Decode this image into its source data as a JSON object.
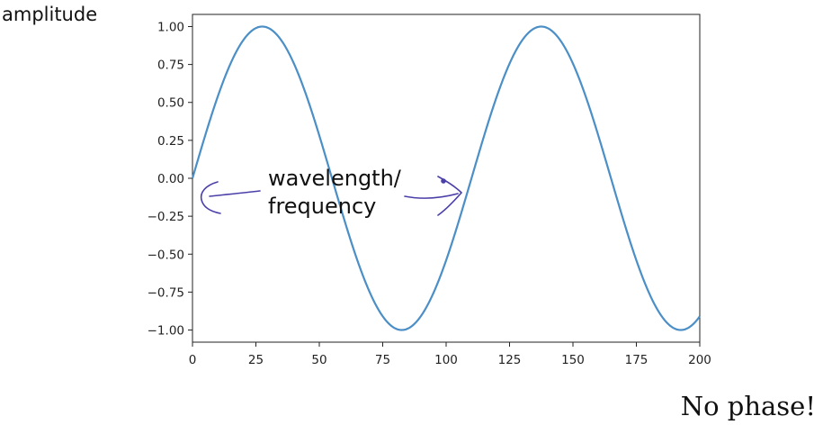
{
  "chart_data": {
    "type": "line",
    "title": "",
    "xlabel": "",
    "ylabel": "amplitude",
    "xlim": [
      0,
      200
    ],
    "ylim": [
      -1.08,
      1.08
    ],
    "xticks": [
      0,
      25,
      50,
      75,
      100,
      125,
      150,
      175,
      200
    ],
    "yticks": [
      1.0,
      0.75,
      0.5,
      0.25,
      0.0,
      -0.25,
      -0.5,
      -0.75,
      -1.0
    ],
    "ytick_labels": [
      "1.00",
      "0.75",
      "0.50",
      "0.25",
      "0.00",
      "−0.25",
      "−0.50",
      "−0.75",
      "−1.00"
    ],
    "grid": false,
    "series": [
      {
        "function": "sin",
        "amplitude": 1.0,
        "period": 110,
        "phase": 0,
        "x_range": [
          0,
          200
        ],
        "color": "#4b8fc6"
      }
    ],
    "annotation": {
      "lines": [
        "wavelength/",
        "frequency"
      ],
      "color": "#4a3fa8"
    },
    "note": "No phase!"
  }
}
